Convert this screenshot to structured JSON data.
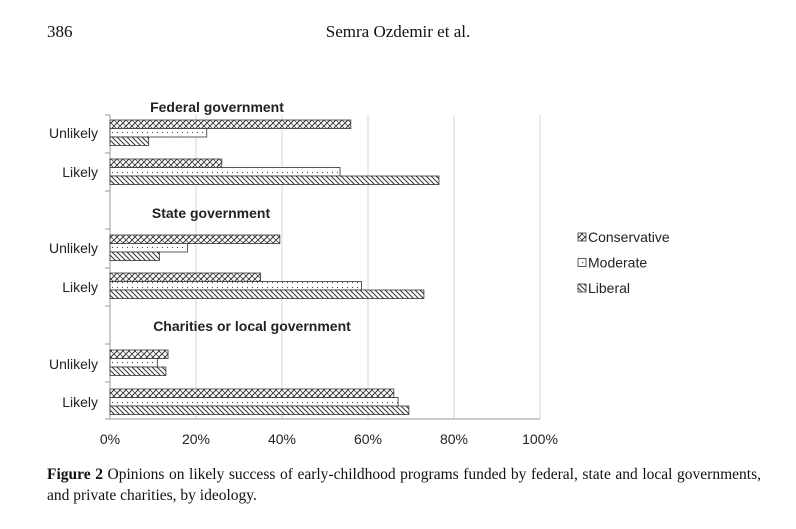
{
  "header": {
    "page_number": "386",
    "running_head": "Semra Ozdemir et al."
  },
  "chart_data": {
    "type": "bar",
    "orientation": "horizontal",
    "groups": [
      {
        "title": "Federal government",
        "categories": [
          "Unlikely",
          "Likely"
        ],
        "series": [
          {
            "name": "Conservative",
            "values": [
              56,
              26
            ]
          },
          {
            "name": "Moderate",
            "values": [
              22.5,
              53.5
            ]
          },
          {
            "name": "Liberal",
            "values": [
              9,
              76.5
            ]
          }
        ]
      },
      {
        "title": "State government",
        "categories": [
          "Unlikely",
          "Likely"
        ],
        "series": [
          {
            "name": "Conservative",
            "values": [
              39.5,
              35
            ]
          },
          {
            "name": "Moderate",
            "values": [
              18,
              58.5
            ]
          },
          {
            "name": "Liberal",
            "values": [
              11.5,
              73
            ]
          }
        ]
      },
      {
        "title": "Charities or local government",
        "categories": [
          "Unlikely",
          "Likely"
        ],
        "series": [
          {
            "name": "Conservative",
            "values": [
              13.5,
              66
            ]
          },
          {
            "name": "Moderate",
            "values": [
              11,
              67
            ]
          },
          {
            "name": "Liberal",
            "values": [
              13,
              69.5
            ]
          }
        ]
      }
    ],
    "legend": [
      "Conservative",
      "Moderate",
      "Liberal"
    ],
    "legend_position": "right",
    "x_ticks": [
      "0%",
      "20%",
      "40%",
      "60%",
      "80%",
      "100%"
    ],
    "xlim": [
      0,
      100
    ],
    "grid": true
  },
  "caption": {
    "label": "Figure 2",
    "text": "Opinions on likely success of early-childhood programs funded by federal, state and local governments, and private charities, by ideology."
  }
}
